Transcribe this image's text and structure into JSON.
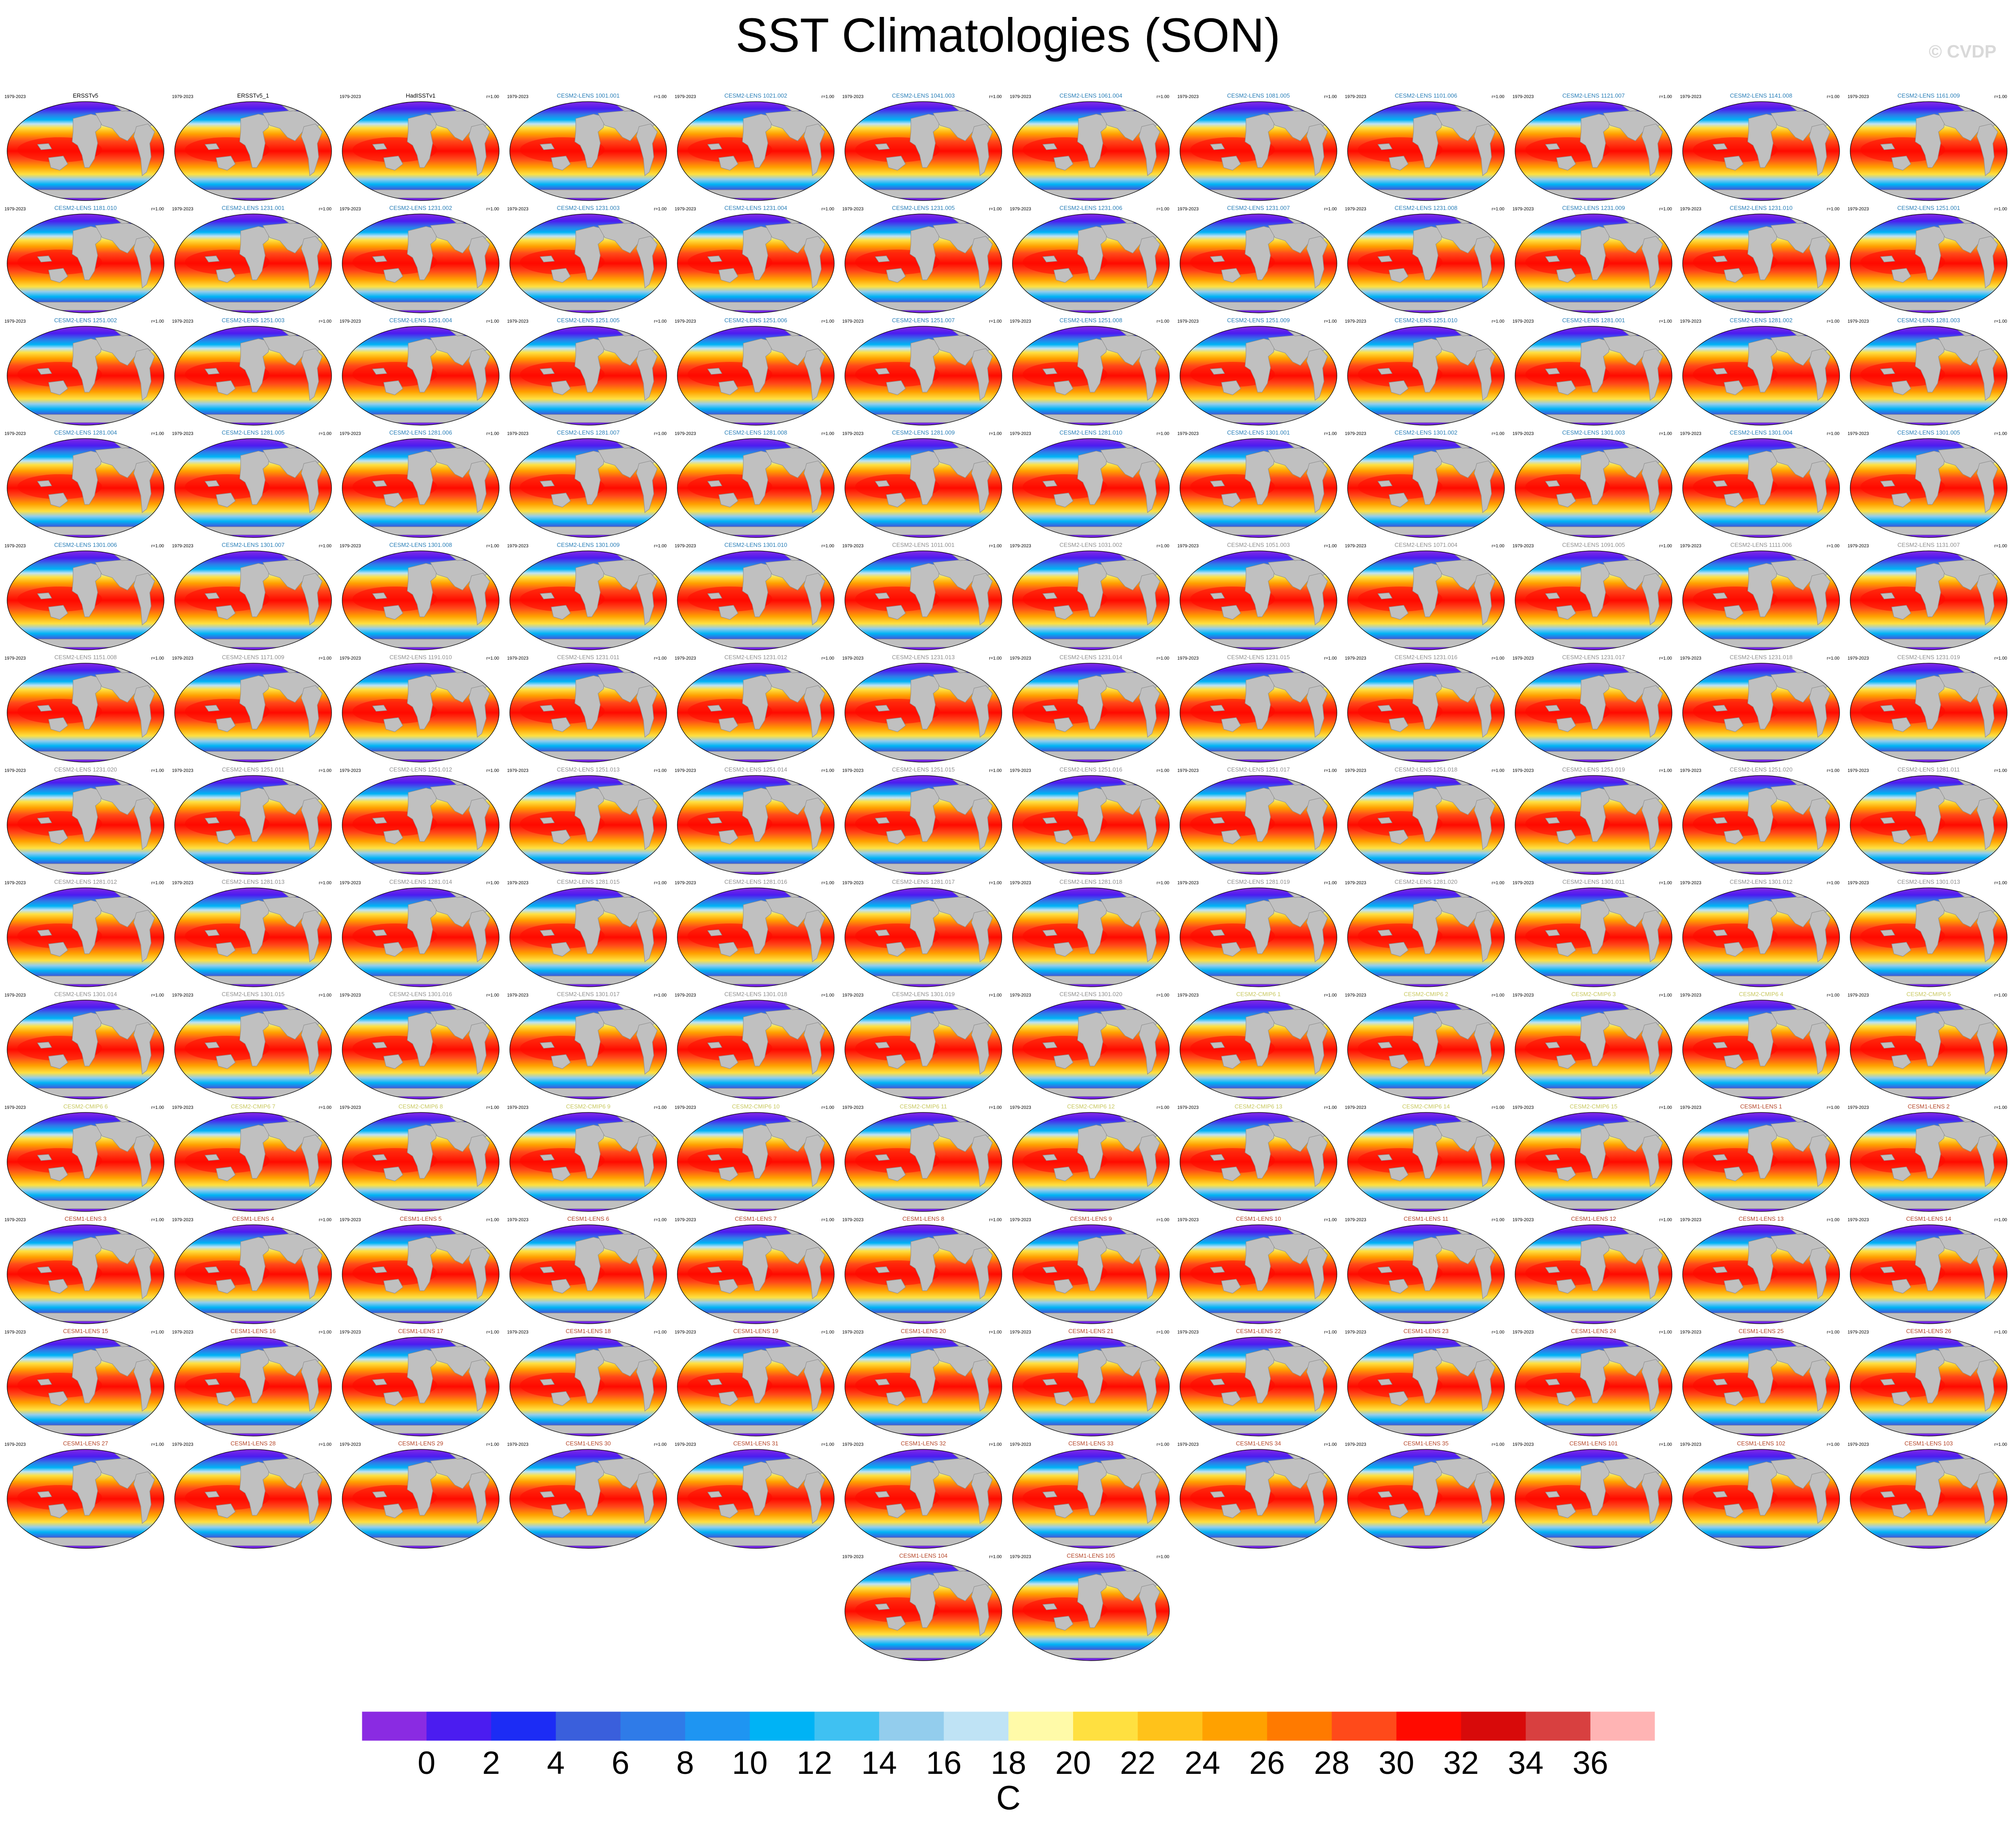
{
  "chart_data": {
    "type": "heatmap",
    "title": "SST Climatologies (SON)",
    "credit": "© CVDP",
    "period": "1979-2023",
    "pattern_r": "r=1.00",
    "variable": "sea surface temperature",
    "units": "C",
    "colorbar": {
      "levels": [
        0,
        2,
        4,
        6,
        8,
        10,
        12,
        14,
        16,
        18,
        20,
        22,
        24,
        26,
        28,
        30,
        32,
        34,
        36
      ],
      "tick_labels": [
        "0",
        "2",
        "4",
        "6",
        "8",
        "10",
        "12",
        "14",
        "16",
        "18",
        "20",
        "22",
        "24",
        "26",
        "28",
        "30",
        "32",
        "34",
        "36"
      ],
      "colors": [
        "#8a2be2",
        "#4b1cf0",
        "#1c2cf5",
        "#3a5fdc",
        "#2f7be8",
        "#1e95f2",
        "#00b3f5",
        "#3fc1f2",
        "#93cded",
        "#bfe3f5",
        "#fffaa8",
        "#ffe040",
        "#ffc21a",
        "#ffa100",
        "#ff7a00",
        "#ff4a1a",
        "#ff0a00",
        "#d80a0a",
        "#d84040",
        "#ffb4b4"
      ]
    },
    "panels": [
      {
        "name": "ERSSTv5",
        "color": "#000000",
        "r": ""
      },
      {
        "name": "ERSSTv5_1",
        "color": "#000000",
        "r": ""
      },
      {
        "name": "HadISSTv1",
        "color": "#000000",
        "r": "r=1.00"
      },
      {
        "name": "CESM2-LENS 1001.001",
        "color": "#2a7fb8",
        "r": "r=1.00"
      },
      {
        "name": "CESM2-LENS 1021.002",
        "color": "#2a7fb8",
        "r": "r=1.00"
      },
      {
        "name": "CESM2-LENS 1041.003",
        "color": "#2a7fb8",
        "r": "r=1.00"
      },
      {
        "name": "CESM2-LENS 1061.004",
        "color": "#2a7fb8",
        "r": "r=1.00"
      },
      {
        "name": "CESM2-LENS 1081.005",
        "color": "#2a7fb8",
        "r": "r=1.00"
      },
      {
        "name": "CESM2-LENS 1101.006",
        "color": "#2a7fb8",
        "r": "r=1.00"
      },
      {
        "name": "CESM2-LENS 1121.007",
        "color": "#2a7fb8",
        "r": "r=1.00"
      },
      {
        "name": "CESM2-LENS 1141.008",
        "color": "#2a7fb8",
        "r": "r=1.00"
      },
      {
        "name": "CESM2-LENS 1161.009",
        "color": "#2a7fb8",
        "r": "r=1.00"
      },
      {
        "name": "CESM2-LENS 1181.010",
        "color": "#2a7fb8",
        "r": "r=1.00"
      },
      {
        "name": "CESM2-LENS 1231.001",
        "color": "#2a7fb8",
        "r": "r=1.00"
      },
      {
        "name": "CESM2-LENS 1231.002",
        "color": "#2a7fb8",
        "r": "r=1.00"
      },
      {
        "name": "CESM2-LENS 1231.003",
        "color": "#2a7fb8",
        "r": "r=1.00"
      },
      {
        "name": "CESM2-LENS 1231.004",
        "color": "#2a7fb8",
        "r": "r=1.00"
      },
      {
        "name": "CESM2-LENS 1231.005",
        "color": "#2a7fb8",
        "r": "r=1.00"
      },
      {
        "name": "CESM2-LENS 1231.006",
        "color": "#2a7fb8",
        "r": "r=1.00"
      },
      {
        "name": "CESM2-LENS 1231.007",
        "color": "#2a7fb8",
        "r": "r=1.00"
      },
      {
        "name": "CESM2-LENS 1231.008",
        "color": "#2a7fb8",
        "r": "r=1.00"
      },
      {
        "name": "CESM2-LENS 1231.009",
        "color": "#2a7fb8",
        "r": "r=1.00"
      },
      {
        "name": "CESM2-LENS 1231.010",
        "color": "#2a7fb8",
        "r": "r=1.00"
      },
      {
        "name": "CESM2-LENS 1251.001",
        "color": "#2a7fb8",
        "r": "r=1.00"
      },
      {
        "name": "CESM2-LENS 1251.002",
        "color": "#2a7fb8",
        "r": "r=1.00"
      },
      {
        "name": "CESM2-LENS 1251.003",
        "color": "#2a7fb8",
        "r": "r=1.00"
      },
      {
        "name": "CESM2-LENS 1251.004",
        "color": "#2a7fb8",
        "r": "r=1.00"
      },
      {
        "name": "CESM2-LENS 1251.005",
        "color": "#2a7fb8",
        "r": "r=1.00"
      },
      {
        "name": "CESM2-LENS 1251.006",
        "color": "#2a7fb8",
        "r": "r=1.00"
      },
      {
        "name": "CESM2-LENS 1251.007",
        "color": "#2a7fb8",
        "r": "r=1.00"
      },
      {
        "name": "CESM2-LENS 1251.008",
        "color": "#2a7fb8",
        "r": "r=1.00"
      },
      {
        "name": "CESM2-LENS 1251.009",
        "color": "#2a7fb8",
        "r": "r=1.00"
      },
      {
        "name": "CESM2-LENS 1251.010",
        "color": "#2a7fb8",
        "r": "r=1.00"
      },
      {
        "name": "CESM2-LENS 1281.001",
        "color": "#2a7fb8",
        "r": "r=1.00"
      },
      {
        "name": "CESM2-LENS 1281.002",
        "color": "#2a7fb8",
        "r": "r=1.00"
      },
      {
        "name": "CESM2-LENS 1281.003",
        "color": "#2a7fb8",
        "r": "r=1.00"
      },
      {
        "name": "CESM2-LENS 1281.004",
        "color": "#2a7fb8",
        "r": "r=1.00"
      },
      {
        "name": "CESM2-LENS 1281.005",
        "color": "#2a7fb8",
        "r": "r=1.00"
      },
      {
        "name": "CESM2-LENS 1281.006",
        "color": "#2a7fb8",
        "r": "r=1.00"
      },
      {
        "name": "CESM2-LENS 1281.007",
        "color": "#2a7fb8",
        "r": "r=1.00"
      },
      {
        "name": "CESM2-LENS 1281.008",
        "color": "#2a7fb8",
        "r": "r=1.00"
      },
      {
        "name": "CESM2-LENS 1281.009",
        "color": "#2a7fb8",
        "r": "r=1.00"
      },
      {
        "name": "CESM2-LENS 1281.010",
        "color": "#2a7fb8",
        "r": "r=1.00"
      },
      {
        "name": "CESM2-LENS 1301.001",
        "color": "#2a7fb8",
        "r": "r=1.00"
      },
      {
        "name": "CESM2-LENS 1301.002",
        "color": "#2a7fb8",
        "r": "r=1.00"
      },
      {
        "name": "CESM2-LENS 1301.003",
        "color": "#2a7fb8",
        "r": "r=1.00"
      },
      {
        "name": "CESM2-LENS 1301.004",
        "color": "#2a7fb8",
        "r": "r=1.00"
      },
      {
        "name": "CESM2-LENS 1301.005",
        "color": "#2a7fb8",
        "r": "r=1.00"
      },
      {
        "name": "CESM2-LENS 1301.006",
        "color": "#2a7fb8",
        "r": "r=1.00"
      },
      {
        "name": "CESM2-LENS 1301.007",
        "color": "#2a7fb8",
        "r": "r=1.00"
      },
      {
        "name": "CESM2-LENS 1301.008",
        "color": "#2a7fb8",
        "r": "r=1.00"
      },
      {
        "name": "CESM2-LENS 1301.009",
        "color": "#2a7fb8",
        "r": "r=1.00"
      },
      {
        "name": "CESM2-LENS 1301.010",
        "color": "#2a7fb8",
        "r": "r=1.00"
      },
      {
        "name": "CESM2-LENS 1011.001",
        "color": "#8f8f8f",
        "r": "r=1.00"
      },
      {
        "name": "CESM2-LENS 1031.002",
        "color": "#8f8f8f",
        "r": "r=1.00"
      },
      {
        "name": "CESM2-LENS 1051.003",
        "color": "#8f8f8f",
        "r": "r=1.00"
      },
      {
        "name": "CESM2-LENS 1071.004",
        "color": "#8f8f8f",
        "r": "r=1.00"
      },
      {
        "name": "CESM2-LENS 1091.005",
        "color": "#8f8f8f",
        "r": "r=1.00"
      },
      {
        "name": "CESM2-LENS 1111.006",
        "color": "#8f8f8f",
        "r": "r=1.00"
      },
      {
        "name": "CESM2-LENS 1131.007",
        "color": "#8f8f8f",
        "r": "r=1.00"
      },
      {
        "name": "CESM2-LENS 1151.008",
        "color": "#8f8f8f",
        "r": "r=1.00"
      },
      {
        "name": "CESM2-LENS 1171.009",
        "color": "#8f8f8f",
        "r": "r=1.00"
      },
      {
        "name": "CESM2-LENS 1191.010",
        "color": "#8f8f8f",
        "r": "r=1.00"
      },
      {
        "name": "CESM2-LENS 1231.011",
        "color": "#8f8f8f",
        "r": "r=1.00"
      },
      {
        "name": "CESM2-LENS 1231.012",
        "color": "#8f8f8f",
        "r": "r=1.00"
      },
      {
        "name": "CESM2-LENS 1231.013",
        "color": "#8f8f8f",
        "r": "r=1.00"
      },
      {
        "name": "CESM2-LENS 1231.014",
        "color": "#8f8f8f",
        "r": "r=1.00"
      },
      {
        "name": "CESM2-LENS 1231.015",
        "color": "#8f8f8f",
        "r": "r=1.00"
      },
      {
        "name": "CESM2-LENS 1231.016",
        "color": "#8f8f8f",
        "r": "r=1.00"
      },
      {
        "name": "CESM2-LENS 1231.017",
        "color": "#8f8f8f",
        "r": "r=1.00"
      },
      {
        "name": "CESM2-LENS 1231.018",
        "color": "#8f8f8f",
        "r": "r=1.00"
      },
      {
        "name": "CESM2-LENS 1231.019",
        "color": "#8f8f8f",
        "r": "r=1.00"
      },
      {
        "name": "CESM2-LENS 1231.020",
        "color": "#8f8f8f",
        "r": "r=1.00"
      },
      {
        "name": "CESM2-LENS 1251.011",
        "color": "#8f8f8f",
        "r": "r=1.00"
      },
      {
        "name": "CESM2-LENS 1251.012",
        "color": "#8f8f8f",
        "r": "r=1.00"
      },
      {
        "name": "CESM2-LENS 1251.013",
        "color": "#8f8f8f",
        "r": "r=1.00"
      },
      {
        "name": "CESM2-LENS 1251.014",
        "color": "#8f8f8f",
        "r": "r=1.00"
      },
      {
        "name": "CESM2-LENS 1251.015",
        "color": "#8f8f8f",
        "r": "r=1.00"
      },
      {
        "name": "CESM2-LENS 1251.016",
        "color": "#8f8f8f",
        "r": "r=1.00"
      },
      {
        "name": "CESM2-LENS 1251.017",
        "color": "#8f8f8f",
        "r": "r=1.00"
      },
      {
        "name": "CESM2-LENS 1251.018",
        "color": "#8f8f8f",
        "r": "r=1.00"
      },
      {
        "name": "CESM2-LENS 1251.019",
        "color": "#8f8f8f",
        "r": "r=1.00"
      },
      {
        "name": "CESM2-LENS 1251.020",
        "color": "#8f8f8f",
        "r": "r=1.00"
      },
      {
        "name": "CESM2-LENS 1281.011",
        "color": "#8f8f8f",
        "r": "r=1.00"
      },
      {
        "name": "CESM2-LENS 1281.012",
        "color": "#8f8f8f",
        "r": "r=1.00"
      },
      {
        "name": "CESM2-LENS 1281.013",
        "color": "#8f8f8f",
        "r": "r=1.00"
      },
      {
        "name": "CESM2-LENS 1281.014",
        "color": "#8f8f8f",
        "r": "r=1.00"
      },
      {
        "name": "CESM2-LENS 1281.015",
        "color": "#8f8f8f",
        "r": "r=1.00"
      },
      {
        "name": "CESM2-LENS 1281.016",
        "color": "#8f8f8f",
        "r": "r=1.00"
      },
      {
        "name": "CESM2-LENS 1281.017",
        "color": "#8f8f8f",
        "r": "r=1.00"
      },
      {
        "name": "CESM2-LENS 1281.018",
        "color": "#8f8f8f",
        "r": "r=1.00"
      },
      {
        "name": "CESM2-LENS 1281.019",
        "color": "#8f8f8f",
        "r": "r=1.00"
      },
      {
        "name": "CESM2-LENS 1281.020",
        "color": "#8f8f8f",
        "r": "r=1.00"
      },
      {
        "name": "CESM2-LENS 1301.011",
        "color": "#8f8f8f",
        "r": "r=1.00"
      },
      {
        "name": "CESM2-LENS 1301.012",
        "color": "#8f8f8f",
        "r": "r=1.00"
      },
      {
        "name": "CESM2-LENS 1301.013",
        "color": "#8f8f8f",
        "r": "r=1.00"
      },
      {
        "name": "CESM2-LENS 1301.014",
        "color": "#8f8f8f",
        "r": "r=1.00"
      },
      {
        "name": "CESM2-LENS 1301.015",
        "color": "#8f8f8f",
        "r": "r=1.00"
      },
      {
        "name": "CESM2-LENS 1301.016",
        "color": "#8f8f8f",
        "r": "r=1.00"
      },
      {
        "name": "CESM2-LENS 1301.017",
        "color": "#8f8f8f",
        "r": "r=1.00"
      },
      {
        "name": "CESM2-LENS 1301.018",
        "color": "#8f8f8f",
        "r": "r=1.00"
      },
      {
        "name": "CESM2-LENS 1301.019",
        "color": "#8f8f8f",
        "r": "r=1.00"
      },
      {
        "name": "CESM2-LENS 1301.020",
        "color": "#8f8f8f",
        "r": "r=1.00"
      },
      {
        "name": "CESM2-CMIP6 1",
        "color": "#c8c860",
        "r": "r=1.00"
      },
      {
        "name": "CESM2-CMIP6 2",
        "color": "#c8c860",
        "r": "r=1.00"
      },
      {
        "name": "CESM2-CMIP6 3",
        "color": "#c8c860",
        "r": "r=1.00"
      },
      {
        "name": "CESM2-CMIP6 4",
        "color": "#c8c860",
        "r": "r=1.00"
      },
      {
        "name": "CESM2-CMIP6 5",
        "color": "#c8c860",
        "r": "r=1.00"
      },
      {
        "name": "CESM2-CMIP6 6",
        "color": "#c8c860",
        "r": "r=1.00"
      },
      {
        "name": "CESM2-CMIP6 7",
        "color": "#c8c860",
        "r": "r=1.00"
      },
      {
        "name": "CESM2-CMIP6 8",
        "color": "#c8c860",
        "r": "r=1.00"
      },
      {
        "name": "CESM2-CMIP6 9",
        "color": "#c8c860",
        "r": "r=1.00"
      },
      {
        "name": "CESM2-CMIP6 10",
        "color": "#c8c860",
        "r": "r=1.00"
      },
      {
        "name": "CESM2-CMIP6 11",
        "color": "#c8c860",
        "r": "r=1.00"
      },
      {
        "name": "CESM2-CMIP6 12",
        "color": "#c8c860",
        "r": "r=1.00"
      },
      {
        "name": "CESM2-CMIP6 13",
        "color": "#c8c860",
        "r": "r=1.00"
      },
      {
        "name": "CESM2-CMIP6 14",
        "color": "#c8c860",
        "r": "r=1.00"
      },
      {
        "name": "CESM2-CMIP6 15",
        "color": "#c8c860",
        "r": "r=1.00"
      },
      {
        "name": "CESM1-LENS 1",
        "color": "#b5472a",
        "r": "r=1.00"
      },
      {
        "name": "CESM1-LENS 2",
        "color": "#b5472a",
        "r": "r=1.00"
      },
      {
        "name": "CESM1-LENS 3",
        "color": "#b5472a",
        "r": "r=1.00"
      },
      {
        "name": "CESM1-LENS 4",
        "color": "#b5472a",
        "r": "r=1.00"
      },
      {
        "name": "CESM1-LENS 5",
        "color": "#b5472a",
        "r": "r=1.00"
      },
      {
        "name": "CESM1-LENS 6",
        "color": "#b5472a",
        "r": "r=1.00"
      },
      {
        "name": "CESM1-LENS 7",
        "color": "#b5472a",
        "r": "r=1.00"
      },
      {
        "name": "CESM1-LENS 8",
        "color": "#b5472a",
        "r": "r=1.00"
      },
      {
        "name": "CESM1-LENS 9",
        "color": "#b5472a",
        "r": "r=1.00"
      },
      {
        "name": "CESM1-LENS 10",
        "color": "#b5472a",
        "r": "r=1.00"
      },
      {
        "name": "CESM1-LENS 11",
        "color": "#b5472a",
        "r": "r=1.00"
      },
      {
        "name": "CESM1-LENS 12",
        "color": "#b5472a",
        "r": "r=1.00"
      },
      {
        "name": "CESM1-LENS 13",
        "color": "#b5472a",
        "r": "r=1.00"
      },
      {
        "name": "CESM1-LENS 14",
        "color": "#b5472a",
        "r": "r=1.00"
      },
      {
        "name": "CESM1-LENS 15",
        "color": "#b5472a",
        "r": "r=1.00"
      },
      {
        "name": "CESM1-LENS 16",
        "color": "#b5472a",
        "r": "r=1.00"
      },
      {
        "name": "CESM1-LENS 17",
        "color": "#b5472a",
        "r": "r=1.00"
      },
      {
        "name": "CESM1-LENS 18",
        "color": "#b5472a",
        "r": "r=1.00"
      },
      {
        "name": "CESM1-LENS 19",
        "color": "#b5472a",
        "r": "r=1.00"
      },
      {
        "name": "CESM1-LENS 20",
        "color": "#b5472a",
        "r": "r=1.00"
      },
      {
        "name": "CESM1-LENS 21",
        "color": "#b5472a",
        "r": "r=1.00"
      },
      {
        "name": "CESM1-LENS 22",
        "color": "#b5472a",
        "r": "r=1.00"
      },
      {
        "name": "CESM1-LENS 23",
        "color": "#b5472a",
        "r": "r=1.00"
      },
      {
        "name": "CESM1-LENS 24",
        "color": "#b5472a",
        "r": "r=1.00"
      },
      {
        "name": "CESM1-LENS 25",
        "color": "#b5472a",
        "r": "r=1.00"
      },
      {
        "name": "CESM1-LENS 26",
        "color": "#b5472a",
        "r": "r=1.00"
      },
      {
        "name": "CESM1-LENS 27",
        "color": "#b5472a",
        "r": "r=1.00"
      },
      {
        "name": "CESM1-LENS 28",
        "color": "#b5472a",
        "r": "r=1.00"
      },
      {
        "name": "CESM1-LENS 29",
        "color": "#b5472a",
        "r": "r=1.00"
      },
      {
        "name": "CESM1-LENS 30",
        "color": "#b5472a",
        "r": "r=1.00"
      },
      {
        "name": "CESM1-LENS 31",
        "color": "#b5472a",
        "r": "r=1.00"
      },
      {
        "name": "CESM1-LENS 32",
        "color": "#b5472a",
        "r": "r=1.00"
      },
      {
        "name": "CESM1-LENS 33",
        "color": "#b5472a",
        "r": "r=1.00"
      },
      {
        "name": "CESM1-LENS 34",
        "color": "#b5472a",
        "r": "r=1.00"
      },
      {
        "name": "CESM1-LENS 35",
        "color": "#b5472a",
        "r": "r=1.00"
      },
      {
        "name": "CESM1-LENS 101",
        "color": "#b5472a",
        "r": "r=1.00"
      },
      {
        "name": "CESM1-LENS 102",
        "color": "#b5472a",
        "r": "r=1.00"
      },
      {
        "name": "CESM1-LENS 103",
        "color": "#b5472a",
        "r": "r=1.00"
      },
      {
        "name": "CESM1-LENS 104",
        "color": "#b5472a",
        "r": "r=1.00"
      },
      {
        "name": "CESM1-LENS 105",
        "color": "#b5472a",
        "r": "r=1.00"
      }
    ]
  }
}
